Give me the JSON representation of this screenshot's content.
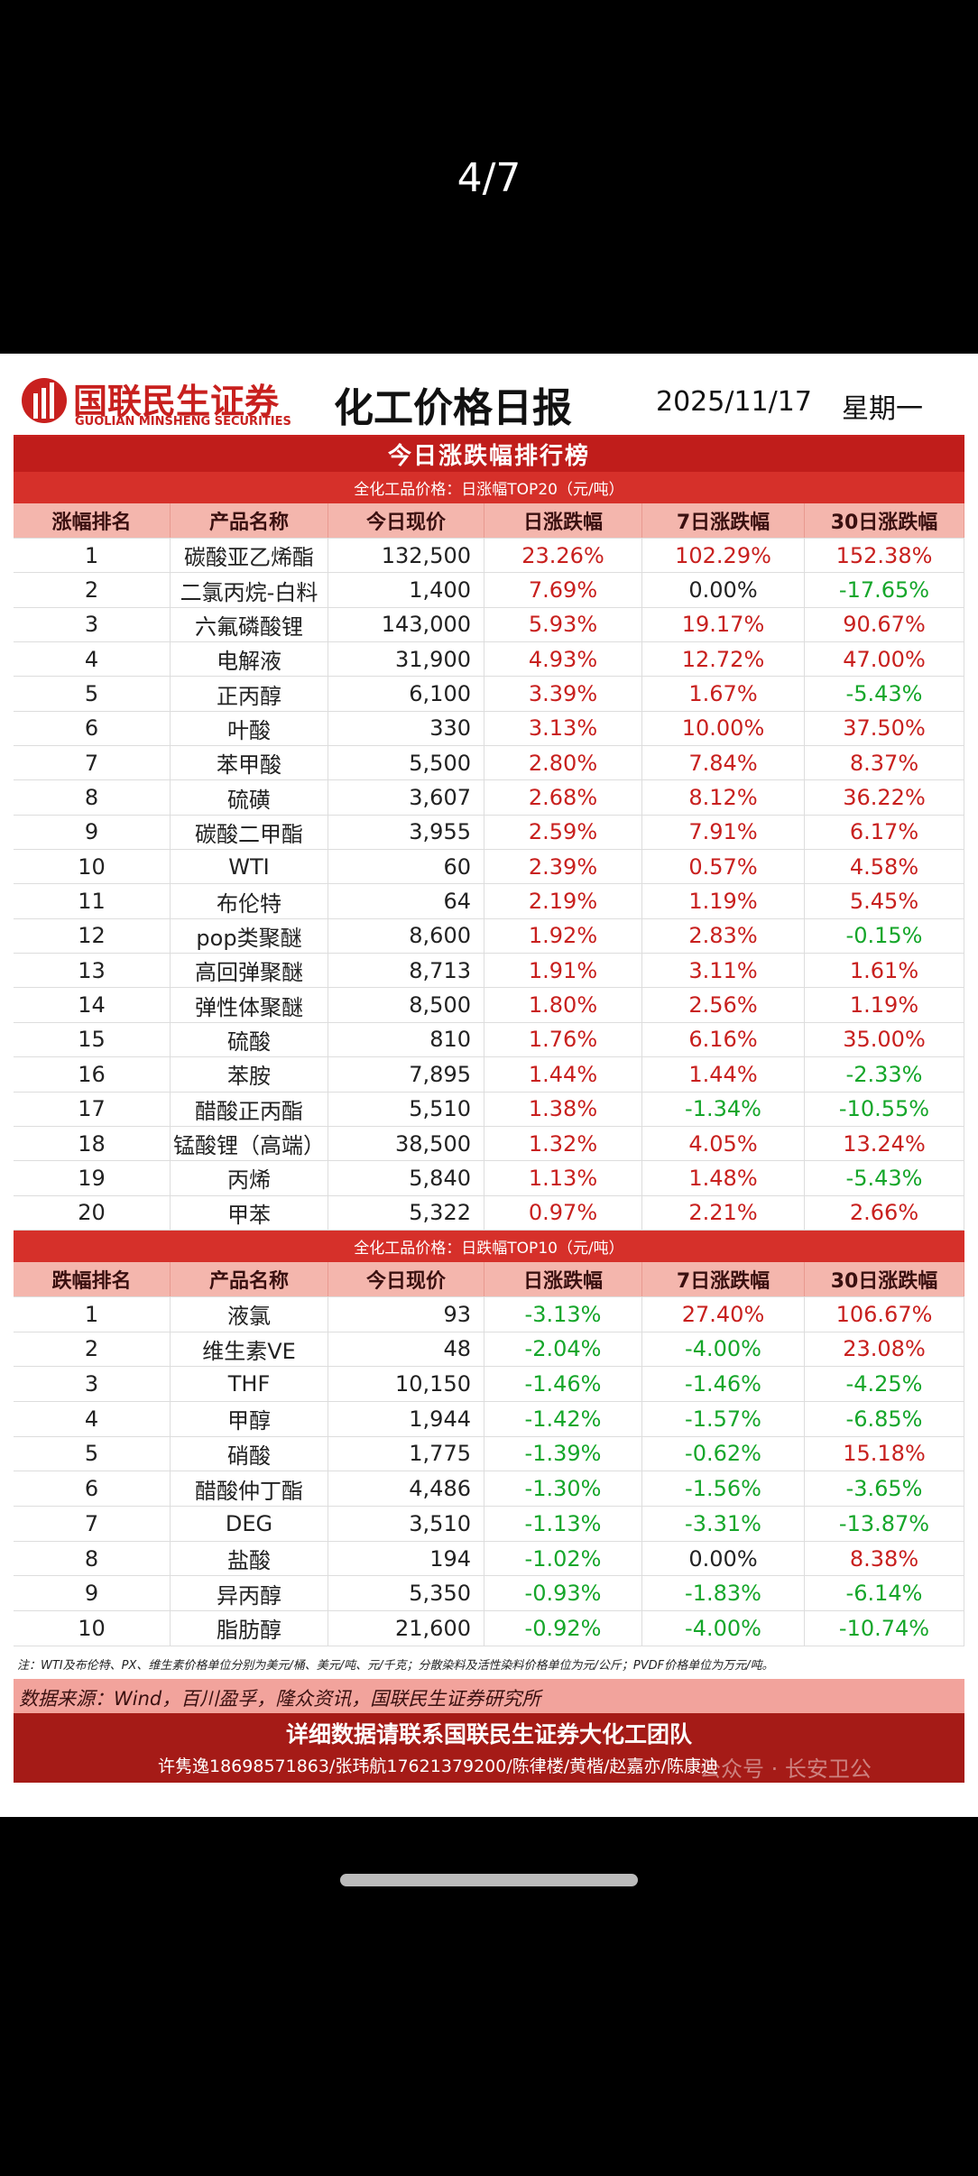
{
  "viewer": {
    "counter": "4/7"
  },
  "report": {
    "brand": "国联民生证券",
    "brand_en": "GUOLIAN MINSHENG SECURITIES",
    "title": "化工价格日报",
    "date": "2025/11/17",
    "weekday": "星期一",
    "banner": "今日涨跌幅排行榜"
  },
  "table1": {
    "subtitle": "全化工品价格：日涨幅TOP20（元/吨）",
    "headers": [
      "涨幅排名",
      "产品名称",
      "今日现价",
      "日涨跌幅",
      "7日涨跌幅",
      "30日涨跌幅"
    ],
    "rows": [
      [
        "1",
        "碳酸亚乙烯酯",
        "132,500",
        "23.26%",
        "102.29%",
        "152.38%"
      ],
      [
        "2",
        "二氯丙烷-白料",
        "1,400",
        "7.69%",
        "0.00%",
        "-17.65%"
      ],
      [
        "3",
        "六氟磷酸锂",
        "143,000",
        "5.93%",
        "19.17%",
        "90.67%"
      ],
      [
        "4",
        "电解液",
        "31,900",
        "4.93%",
        "12.72%",
        "47.00%"
      ],
      [
        "5",
        "正丙醇",
        "6,100",
        "3.39%",
        "1.67%",
        "-5.43%"
      ],
      [
        "6",
        "叶酸",
        "330",
        "3.13%",
        "10.00%",
        "37.50%"
      ],
      [
        "7",
        "苯甲酸",
        "5,500",
        "2.80%",
        "7.84%",
        "8.37%"
      ],
      [
        "8",
        "硫磺",
        "3,607",
        "2.68%",
        "8.12%",
        "36.22%"
      ],
      [
        "9",
        "碳酸二甲酯",
        "3,955",
        "2.59%",
        "7.91%",
        "6.17%"
      ],
      [
        "10",
        "WTI",
        "60",
        "2.39%",
        "0.57%",
        "4.58%"
      ],
      [
        "11",
        "布伦特",
        "64",
        "2.19%",
        "1.19%",
        "5.45%"
      ],
      [
        "12",
        "pop类聚醚",
        "8,600",
        "1.92%",
        "2.83%",
        "-0.15%"
      ],
      [
        "13",
        "高回弹聚醚",
        "8,713",
        "1.91%",
        "3.11%",
        "1.61%"
      ],
      [
        "14",
        "弹性体聚醚",
        "8,500",
        "1.80%",
        "2.56%",
        "1.19%"
      ],
      [
        "15",
        "硫酸",
        "810",
        "1.76%",
        "6.16%",
        "35.00%"
      ],
      [
        "16",
        "苯胺",
        "7,895",
        "1.44%",
        "1.44%",
        "-2.33%"
      ],
      [
        "17",
        "醋酸正丙酯",
        "5,510",
        "1.38%",
        "-1.34%",
        "-10.55%"
      ],
      [
        "18",
        "锰酸锂（高端）",
        "38,500",
        "1.32%",
        "4.05%",
        "13.24%"
      ],
      [
        "19",
        "丙烯",
        "5,840",
        "1.13%",
        "1.48%",
        "-5.43%"
      ],
      [
        "20",
        "甲苯",
        "5,322",
        "0.97%",
        "2.21%",
        "2.66%"
      ]
    ]
  },
  "table2": {
    "subtitle": "全化工品价格：日跌幅TOP10（元/吨）",
    "headers": [
      "跌幅排名",
      "产品名称",
      "今日现价",
      "日涨跌幅",
      "7日涨跌幅",
      "30日涨跌幅"
    ],
    "rows": [
      [
        "1",
        "液氯",
        "93",
        "-3.13%",
        "27.40%",
        "106.67%"
      ],
      [
        "2",
        "维生素VE",
        "48",
        "-2.04%",
        "-4.00%",
        "23.08%"
      ],
      [
        "3",
        "THF",
        "10,150",
        "-1.46%",
        "-1.46%",
        "-4.25%"
      ],
      [
        "4",
        "甲醇",
        "1,944",
        "-1.42%",
        "-1.57%",
        "-6.85%"
      ],
      [
        "5",
        "硝酸",
        "1,775",
        "-1.39%",
        "-0.62%",
        "15.18%"
      ],
      [
        "6",
        "醋酸仲丁酯",
        "4,486",
        "-1.30%",
        "-1.56%",
        "-3.65%"
      ],
      [
        "7",
        "DEG",
        "3,510",
        "-1.13%",
        "-3.31%",
        "-13.87%"
      ],
      [
        "8",
        "盐酸",
        "194",
        "-1.02%",
        "0.00%",
        "8.38%"
      ],
      [
        "9",
        "异丙醇",
        "5,350",
        "-0.93%",
        "-1.83%",
        "-6.14%"
      ],
      [
        "10",
        "脂肪醇",
        "21,600",
        "-0.92%",
        "-4.00%",
        "-10.74%"
      ]
    ]
  },
  "footer": {
    "note": "注：WTI及布伦特、PX、维生素价格单位分别为美元/桶、美元/吨、元/千克；分散染料及活性染料价格单位为元/公斤；PVDF价格单位为万元/吨。",
    "source": "数据来源：Wind，百川盈孚，隆众资讯，国联民生证券研究所",
    "contact_title": "详细数据请联系国联民生证券大化工团队",
    "contacts": "许隽逸18698571863/张玮航17621379200/陈律楼/黄楷/赵嘉亦/陈康迪",
    "watermark": "公众号 · 长安卫公"
  }
}
